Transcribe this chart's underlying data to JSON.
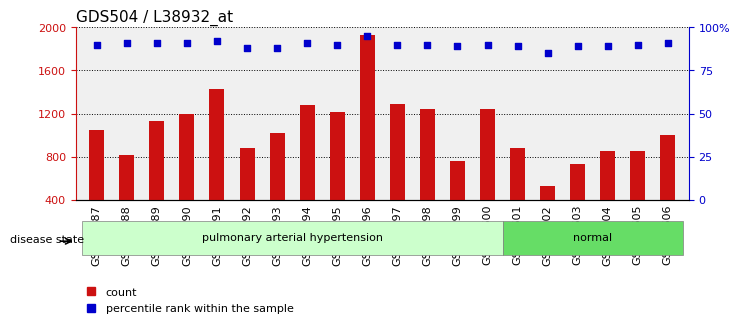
{
  "title": "GDS504 / L38932_at",
  "samples": [
    "GSM12587",
    "GSM12588",
    "GSM12589",
    "GSM12590",
    "GSM12591",
    "GSM12592",
    "GSM12593",
    "GSM12594",
    "GSM12595",
    "GSM12596",
    "GSM12597",
    "GSM12598",
    "GSM12599",
    "GSM12600",
    "GSM12601",
    "GSM12602",
    "GSM12603",
    "GSM12604",
    "GSM12605",
    "GSM12606"
  ],
  "counts": [
    1050,
    820,
    1130,
    1200,
    1430,
    880,
    1020,
    1280,
    1210,
    1930,
    1290,
    1240,
    760,
    1240,
    880,
    530,
    730,
    850,
    850,
    1000
  ],
  "percentiles": [
    90,
    91,
    91,
    91,
    92,
    88,
    88,
    91,
    90,
    95,
    90,
    90,
    89,
    90,
    89,
    85,
    89,
    89,
    90,
    91
  ],
  "bar_color": "#cc1111",
  "dot_color": "#0000cc",
  "groups": [
    {
      "label": "pulmonary arterial hypertension",
      "start": 0,
      "end": 14,
      "color": "#ccffcc"
    },
    {
      "label": "normal",
      "start": 14,
      "end": 20,
      "color": "#66dd66"
    }
  ],
  "disease_state_label": "disease state",
  "ylim_left": [
    400,
    2000
  ],
  "ylim_right": [
    0,
    100
  ],
  "left_yticks": [
    400,
    800,
    1200,
    1600,
    2000
  ],
  "right_yticks": [
    0,
    25,
    50,
    75,
    100
  ],
  "right_yticklabels": [
    "0",
    "25",
    "50",
    "75",
    "100%"
  ],
  "grid_values": [
    800,
    1200,
    1600
  ],
  "legend_items": [
    {
      "label": "count",
      "color": "#cc1111",
      "marker": "s"
    },
    {
      "label": "percentile rank within the sample",
      "color": "#0000cc",
      "marker": "s"
    }
  ],
  "background_color": "#f0f0f0",
  "title_fontsize": 11,
  "tick_fontsize": 8
}
